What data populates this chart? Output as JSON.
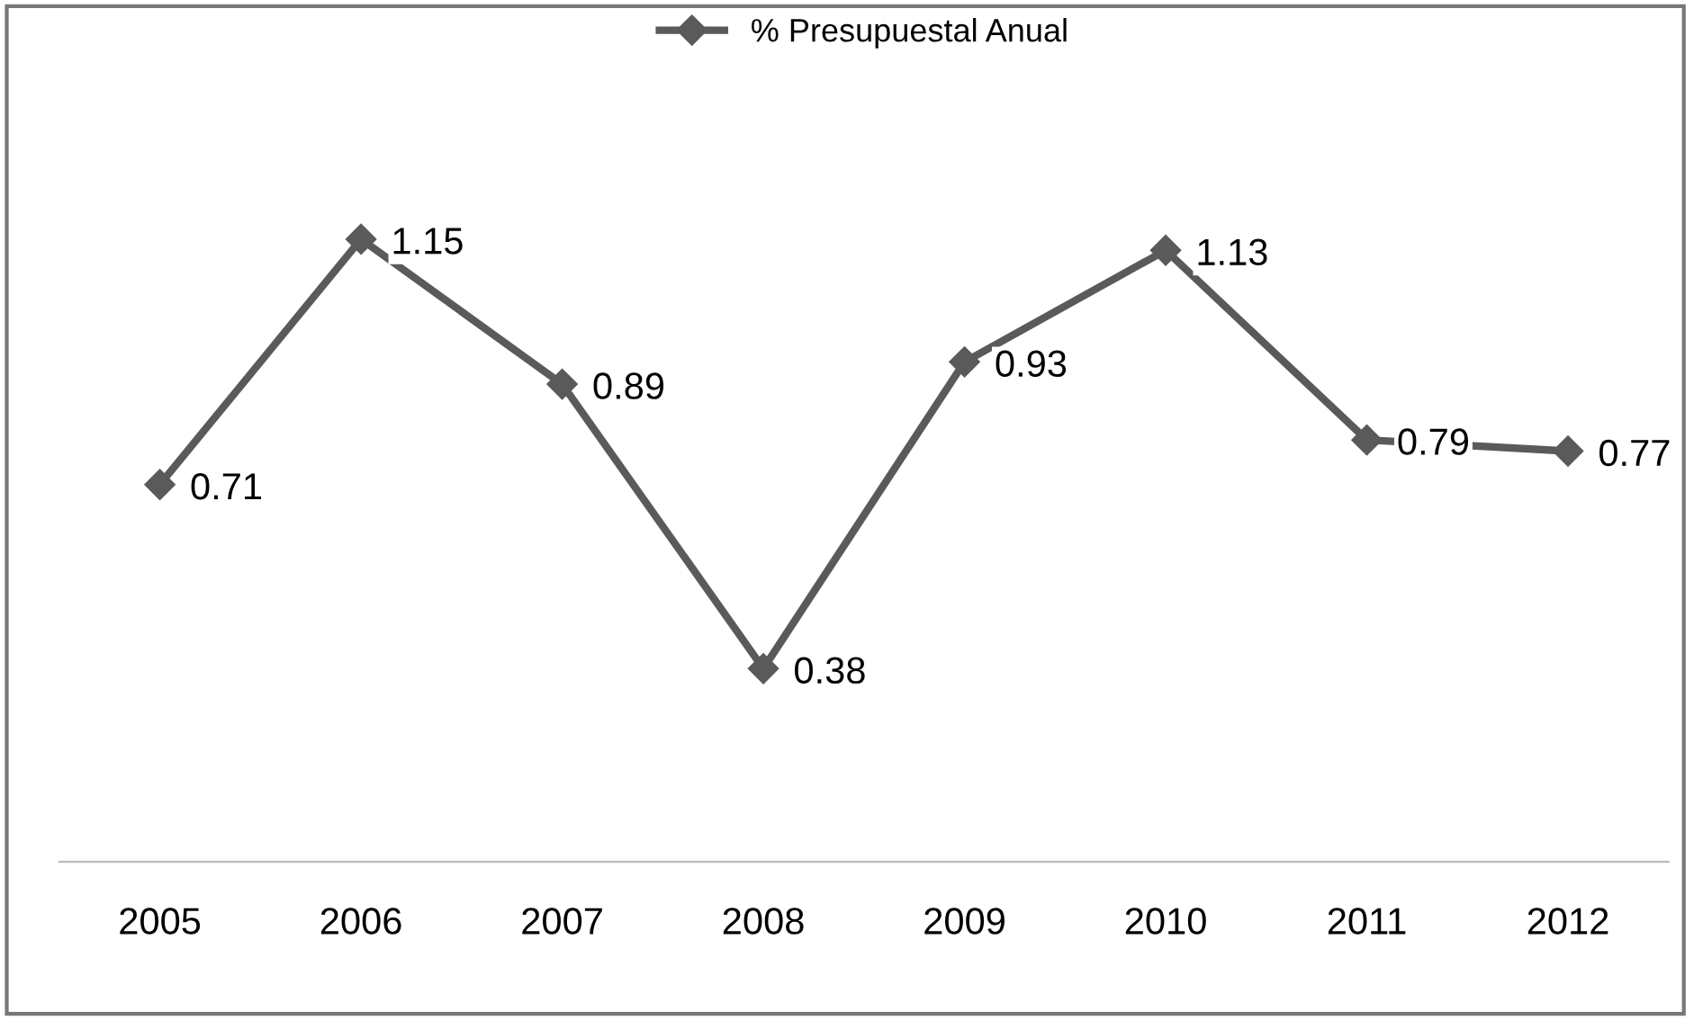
{
  "chart_data": {
    "type": "line",
    "categories": [
      "2005",
      "2006",
      "2007",
      "2008",
      "2009",
      "2010",
      "2011",
      "2012"
    ],
    "series": [
      {
        "name": "% Presupuestal Anual",
        "color": "#5a5a5a",
        "values": [
          0.71,
          1.15,
          0.89,
          0.38,
          0.93,
          1.13,
          0.79,
          0.77
        ]
      }
    ],
    "tick_labels": "x",
    "data_labels": true,
    "legend": "top",
    "marker": "diamond",
    "line_style": "solid",
    "grid": false
  }
}
